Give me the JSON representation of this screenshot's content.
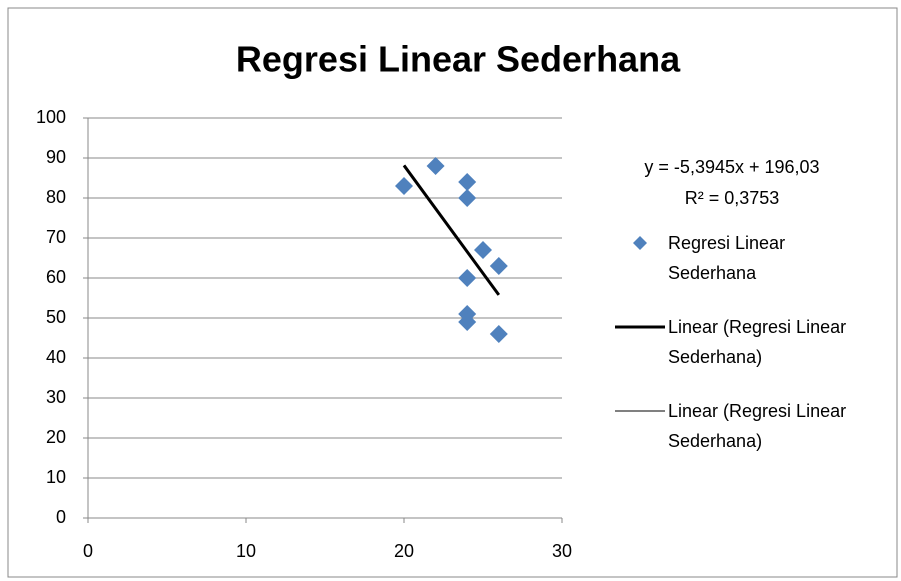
{
  "chart_data": {
    "type": "scatter",
    "title": "Regresi Linear Sederhana",
    "series": [
      {
        "name": "Regresi Linear Sederhana",
        "color": "#4f81bd",
        "x": [
          20,
          22,
          24,
          24,
          25,
          26,
          24,
          24,
          24,
          26
        ],
        "values": [
          83,
          88,
          84,
          80,
          67,
          63,
          60,
          51,
          49,
          46
        ]
      }
    ],
    "trendlines": [
      {
        "name": "Linear (Regresi Linear Sederhana)",
        "color": "#000000",
        "width": 3,
        "x": [
          20,
          26
        ],
        "values": [
          88.14,
          55.77
        ]
      },
      {
        "name": "Linear (Regresi Linear Sederhana)",
        "color": "#000000",
        "width": 1,
        "x": [
          20,
          26
        ],
        "values": [
          88.14,
          55.77
        ]
      }
    ],
    "equation": "y = -5,3945x + 196,03",
    "r_squared": "R² = 0,3753",
    "xlim": [
      0,
      30
    ],
    "xticks": [
      0,
      10,
      20,
      30
    ],
    "ylim": [
      0,
      100
    ],
    "yticks": [
      0,
      10,
      20,
      30,
      40,
      50,
      60,
      70,
      80,
      90,
      100
    ],
    "grid": true,
    "legend": "right"
  }
}
